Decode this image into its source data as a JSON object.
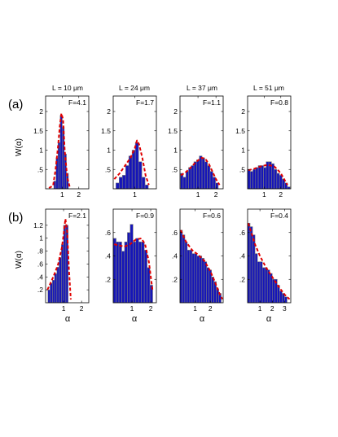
{
  "figure": {
    "column_titles": [
      "L = 10 μm",
      "L = 24 μm",
      "L = 37 μm",
      "L = 51 μm"
    ],
    "row_labels": [
      "(a)",
      "(b)"
    ],
    "ylabel": "W(α)",
    "xlabel": "α"
  },
  "colors": {
    "bar_fill": "#1515b8",
    "bar_edge": "#7f7f7f",
    "fit_line": "#e00000"
  },
  "chart_data": [
    {
      "type": "bar",
      "panel": "a1",
      "annotation": "F=4.1",
      "xlim": [
        0,
        2.6
      ],
      "ylim": [
        0,
        2.4
      ],
      "xticks": [
        1,
        2
      ],
      "yticks": [
        0.5,
        1,
        1.5,
        2
      ],
      "bin_width": 0.125,
      "x": [
        0.56,
        0.69,
        0.81,
        0.94,
        1.06,
        1.19,
        1.31
      ],
      "values": [
        0.2,
        0.8,
        1.2,
        1.9,
        1.6,
        0.9,
        0.4
      ],
      "fit_line": {
        "x": [
          0.2,
          0.45,
          0.6,
          0.75,
          0.85,
          0.95,
          1.05,
          1.15,
          1.3,
          1.45
        ],
        "y": [
          0.02,
          0.08,
          0.5,
          1.1,
          1.6,
          1.95,
          1.8,
          1.0,
          0.3,
          0.05
        ]
      }
    },
    {
      "type": "bar",
      "panel": "a2",
      "annotation": "F=1.7",
      "xlim": [
        0,
        2.0
      ],
      "ylim": [
        0,
        2.4
      ],
      "xticks": [
        1
      ],
      "yticks": [
        0.5,
        1,
        1.5,
        2
      ],
      "bin_width": 0.15,
      "x": [
        0.2,
        0.35,
        0.5,
        0.65,
        0.8,
        0.95,
        1.1,
        1.25,
        1.4,
        1.55
      ],
      "values": [
        0.15,
        0.3,
        0.35,
        0.6,
        0.85,
        1.0,
        1.2,
        0.7,
        0.3,
        0.1
      ],
      "fit_line": {
        "x": [
          0.05,
          0.3,
          0.55,
          0.8,
          1.0,
          1.1,
          1.2,
          1.35,
          1.5,
          1.65
        ],
        "y": [
          0.25,
          0.4,
          0.6,
          0.8,
          1.05,
          1.25,
          1.15,
          0.8,
          0.35,
          0.1
        ]
      }
    },
    {
      "type": "bar",
      "panel": "a3",
      "annotation": "F=1.1",
      "xlim": [
        0,
        2.4
      ],
      "ylim": [
        0,
        2.4
      ],
      "xticks": [
        1,
        2
      ],
      "yticks": [
        0.5,
        1,
        1.5,
        2
      ],
      "bin_width": 0.15,
      "x": [
        0.1,
        0.25,
        0.4,
        0.55,
        0.7,
        0.85,
        1.0,
        1.15,
        1.3,
        1.45,
        1.6,
        1.75,
        1.9,
        2.05
      ],
      "values": [
        0.4,
        0.3,
        0.45,
        0.55,
        0.6,
        0.7,
        0.75,
        0.85,
        0.8,
        0.7,
        0.6,
        0.45,
        0.3,
        0.15
      ],
      "fit_line": {
        "x": [
          0.05,
          0.3,
          0.6,
          0.9,
          1.2,
          1.4,
          1.6,
          1.8,
          2.0,
          2.2
        ],
        "y": [
          0.35,
          0.42,
          0.55,
          0.7,
          0.8,
          0.78,
          0.65,
          0.45,
          0.25,
          0.1
        ]
      }
    },
    {
      "type": "bar",
      "panel": "a4",
      "annotation": "F=0.8",
      "xlim": [
        0,
        2.6
      ],
      "ylim": [
        0,
        2.4
      ],
      "xticks": [
        1,
        2
      ],
      "yticks": [
        0.5,
        1,
        1.5,
        2
      ],
      "bin_width": 0.16,
      "x": [
        0.08,
        0.24,
        0.4,
        0.56,
        0.72,
        0.88,
        1.04,
        1.2,
        1.36,
        1.52,
        1.68,
        1.84,
        2.0,
        2.16,
        2.32,
        2.48
      ],
      "values": [
        0.5,
        0.45,
        0.5,
        0.55,
        0.6,
        0.6,
        0.55,
        0.7,
        0.7,
        0.65,
        0.5,
        0.4,
        0.35,
        0.25,
        0.15,
        0.05
      ],
      "fit_line": {
        "x": [
          0.05,
          0.4,
          0.8,
          1.2,
          1.6,
          1.8,
          2.0,
          2.2,
          2.4
        ],
        "y": [
          0.48,
          0.52,
          0.58,
          0.62,
          0.58,
          0.5,
          0.4,
          0.25,
          0.1
        ]
      }
    },
    {
      "type": "bar",
      "panel": "b1",
      "annotation": "F=2.1",
      "xlim": [
        0,
        2.4
      ],
      "ylim": [
        0,
        1.45
      ],
      "xticks": [
        1,
        2
      ],
      "yticks": [
        0.2,
        0.4,
        0.6,
        0.8,
        1,
        1.2
      ],
      "bin_width": 0.125,
      "x": [
        0.19,
        0.31,
        0.44,
        0.56,
        0.69,
        0.81,
        0.94,
        1.06,
        1.19
      ],
      "values": [
        0.2,
        0.3,
        0.35,
        0.45,
        0.55,
        0.7,
        0.9,
        1.2,
        1.2
      ],
      "fit_line": {
        "x": [
          0.1,
          0.3,
          0.5,
          0.7,
          0.9,
          1.0,
          1.1,
          1.2,
          1.3,
          1.4
        ],
        "y": [
          0.2,
          0.32,
          0.45,
          0.6,
          0.85,
          1.05,
          1.3,
          1.1,
          0.5,
          0.05
        ]
      }
    },
    {
      "type": "bar",
      "panel": "b2",
      "annotation": "F=0.9",
      "xlim": [
        0,
        2.3
      ],
      "ylim": [
        0,
        0.8
      ],
      "xticks": [
        1,
        2
      ],
      "yticks": [
        0.2,
        0.4,
        0.6
      ],
      "bin_width": 0.15,
      "x": [
        0.08,
        0.23,
        0.38,
        0.53,
        0.68,
        0.83,
        0.98,
        1.13,
        1.28,
        1.43,
        1.58,
        1.73,
        1.88,
        2.03
      ],
      "values": [
        0.55,
        0.52,
        0.52,
        0.44,
        0.52,
        0.6,
        0.67,
        0.52,
        0.55,
        0.52,
        0.52,
        0.45,
        0.3,
        0.15
      ],
      "fit_line": {
        "x": [
          0.05,
          0.3,
          0.6,
          0.9,
          1.2,
          1.5,
          1.7,
          1.9,
          2.1
        ],
        "y": [
          0.5,
          0.49,
          0.48,
          0.5,
          0.54,
          0.55,
          0.5,
          0.35,
          0.1
        ]
      }
    },
    {
      "type": "bar",
      "panel": "b3",
      "annotation": "F=0.6",
      "xlim": [
        0,
        2.85
      ],
      "ylim": [
        0,
        0.8
      ],
      "xticks": [
        1,
        2
      ],
      "yticks": [
        0.2,
        0.4,
        0.6
      ],
      "bin_width": 0.16,
      "x": [
        0.08,
        0.24,
        0.4,
        0.56,
        0.72,
        0.88,
        1.04,
        1.2,
        1.36,
        1.52,
        1.68,
        1.84,
        2.0,
        2.16,
        2.32,
        2.48,
        2.64
      ],
      "values": [
        0.62,
        0.58,
        0.52,
        0.45,
        0.45,
        0.42,
        0.42,
        0.4,
        0.4,
        0.38,
        0.35,
        0.3,
        0.28,
        0.22,
        0.18,
        0.12,
        0.08
      ],
      "fit_line": {
        "x": [
          0.05,
          0.4,
          0.8,
          1.2,
          1.6,
          2.0,
          2.3,
          2.6,
          2.8
        ],
        "y": [
          0.62,
          0.52,
          0.45,
          0.41,
          0.36,
          0.27,
          0.18,
          0.08,
          0.03
        ]
      }
    },
    {
      "type": "bar",
      "panel": "b4",
      "annotation": "F=0.4",
      "xlim": [
        0,
        3.5
      ],
      "ylim": [
        0,
        0.8
      ],
      "xticks": [
        1,
        2,
        3
      ],
      "yticks": [
        0.2,
        0.4,
        0.6
      ],
      "bin_width": 0.2,
      "x": [
        0.1,
        0.3,
        0.5,
        0.7,
        0.9,
        1.1,
        1.3,
        1.5,
        1.7,
        1.9,
        2.1,
        2.3,
        2.5,
        2.7,
        2.9,
        3.1
      ],
      "values": [
        0.68,
        0.65,
        0.58,
        0.42,
        0.35,
        0.35,
        0.3,
        0.3,
        0.28,
        0.25,
        0.2,
        0.2,
        0.15,
        0.1,
        0.08,
        0.05
      ],
      "fit_line": {
        "x": [
          0.05,
          0.3,
          0.6,
          1.0,
          1.5,
          2.0,
          2.5,
          3.0,
          3.4
        ],
        "y": [
          0.68,
          0.6,
          0.5,
          0.4,
          0.3,
          0.22,
          0.14,
          0.07,
          0.03
        ]
      }
    }
  ]
}
